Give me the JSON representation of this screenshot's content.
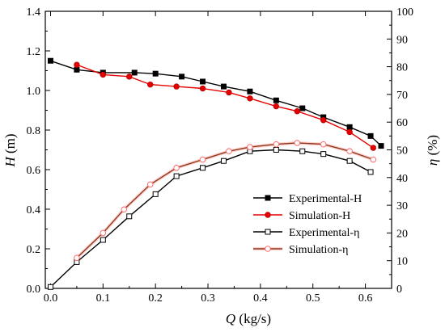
{
  "chart_data": {
    "type": "line",
    "xlabel": {
      "symbol": "Q",
      "unit": " (kg/s)"
    },
    "ylabel_left": {
      "symbol": "H",
      "unit": " (m)"
    },
    "ylabel_right": {
      "symbol": "η",
      "unit": " (%)"
    },
    "xlim": [
      -0.01,
      0.65
    ],
    "ylim_left": [
      0,
      1.4
    ],
    "ylim_right": [
      0,
      100
    ],
    "x_ticks": [
      "0.0",
      "0.1",
      "0.2",
      "0.3",
      "0.4",
      "0.5",
      "0.6"
    ],
    "y_ticks_left": [
      "0.0",
      "0.2",
      "0.4",
      "0.6",
      "0.8",
      "1.0",
      "1.2",
      "1.4"
    ],
    "y_ticks_right": [
      "0",
      "10",
      "20",
      "30",
      "40",
      "50",
      "60",
      "70",
      "80",
      "90",
      "100"
    ],
    "grid": false,
    "legend_position": "lower-right",
    "series": [
      {
        "name": "Experimental-H",
        "axis": "left",
        "color": "#000000",
        "marker": "filled-square",
        "x": [
          0.0,
          0.05,
          0.1,
          0.16,
          0.2,
          0.25,
          0.29,
          0.33,
          0.38,
          0.43,
          0.48,
          0.52,
          0.57,
          0.61,
          0.63
        ],
        "y": [
          1.15,
          1.105,
          1.09,
          1.09,
          1.085,
          1.07,
          1.045,
          1.02,
          0.995,
          0.95,
          0.91,
          0.865,
          0.815,
          0.77,
          0.72
        ]
      },
      {
        "name": "Simulation-H",
        "axis": "left",
        "color": "#e60000",
        "marker": "filled-circle",
        "x": [
          0.05,
          0.1,
          0.15,
          0.19,
          0.24,
          0.29,
          0.34,
          0.38,
          0.43,
          0.47,
          0.52,
          0.57,
          0.615
        ],
        "y": [
          1.13,
          1.08,
          1.07,
          1.03,
          1.02,
          1.01,
          0.99,
          0.96,
          0.92,
          0.895,
          0.85,
          0.79,
          0.71
        ]
      },
      {
        "name": "Experimental-η",
        "axis": "right",
        "color": "#000000",
        "marker": "open-square",
        "x": [
          0.0,
          0.05,
          0.1,
          0.15,
          0.2,
          0.24,
          0.29,
          0.33,
          0.38,
          0.43,
          0.48,
          0.52,
          0.57,
          0.61
        ],
        "y": [
          0.5,
          9.5,
          17.5,
          26,
          34,
          40.5,
          43.5,
          46,
          49.5,
          50,
          49.5,
          48.5,
          46,
          42
        ]
      },
      {
        "name": "Simulation-η",
        "axis": "right",
        "color": "#8b3a1a",
        "marker": "open-circle-red",
        "x": [
          0.05,
          0.1,
          0.14,
          0.19,
          0.24,
          0.29,
          0.34,
          0.38,
          0.43,
          0.47,
          0.52,
          0.57,
          0.615
        ],
        "y": [
          11,
          20,
          28.5,
          37.5,
          43.5,
          46.5,
          49.5,
          51,
          52,
          52.5,
          52,
          49.5,
          46.5
        ]
      }
    ]
  }
}
